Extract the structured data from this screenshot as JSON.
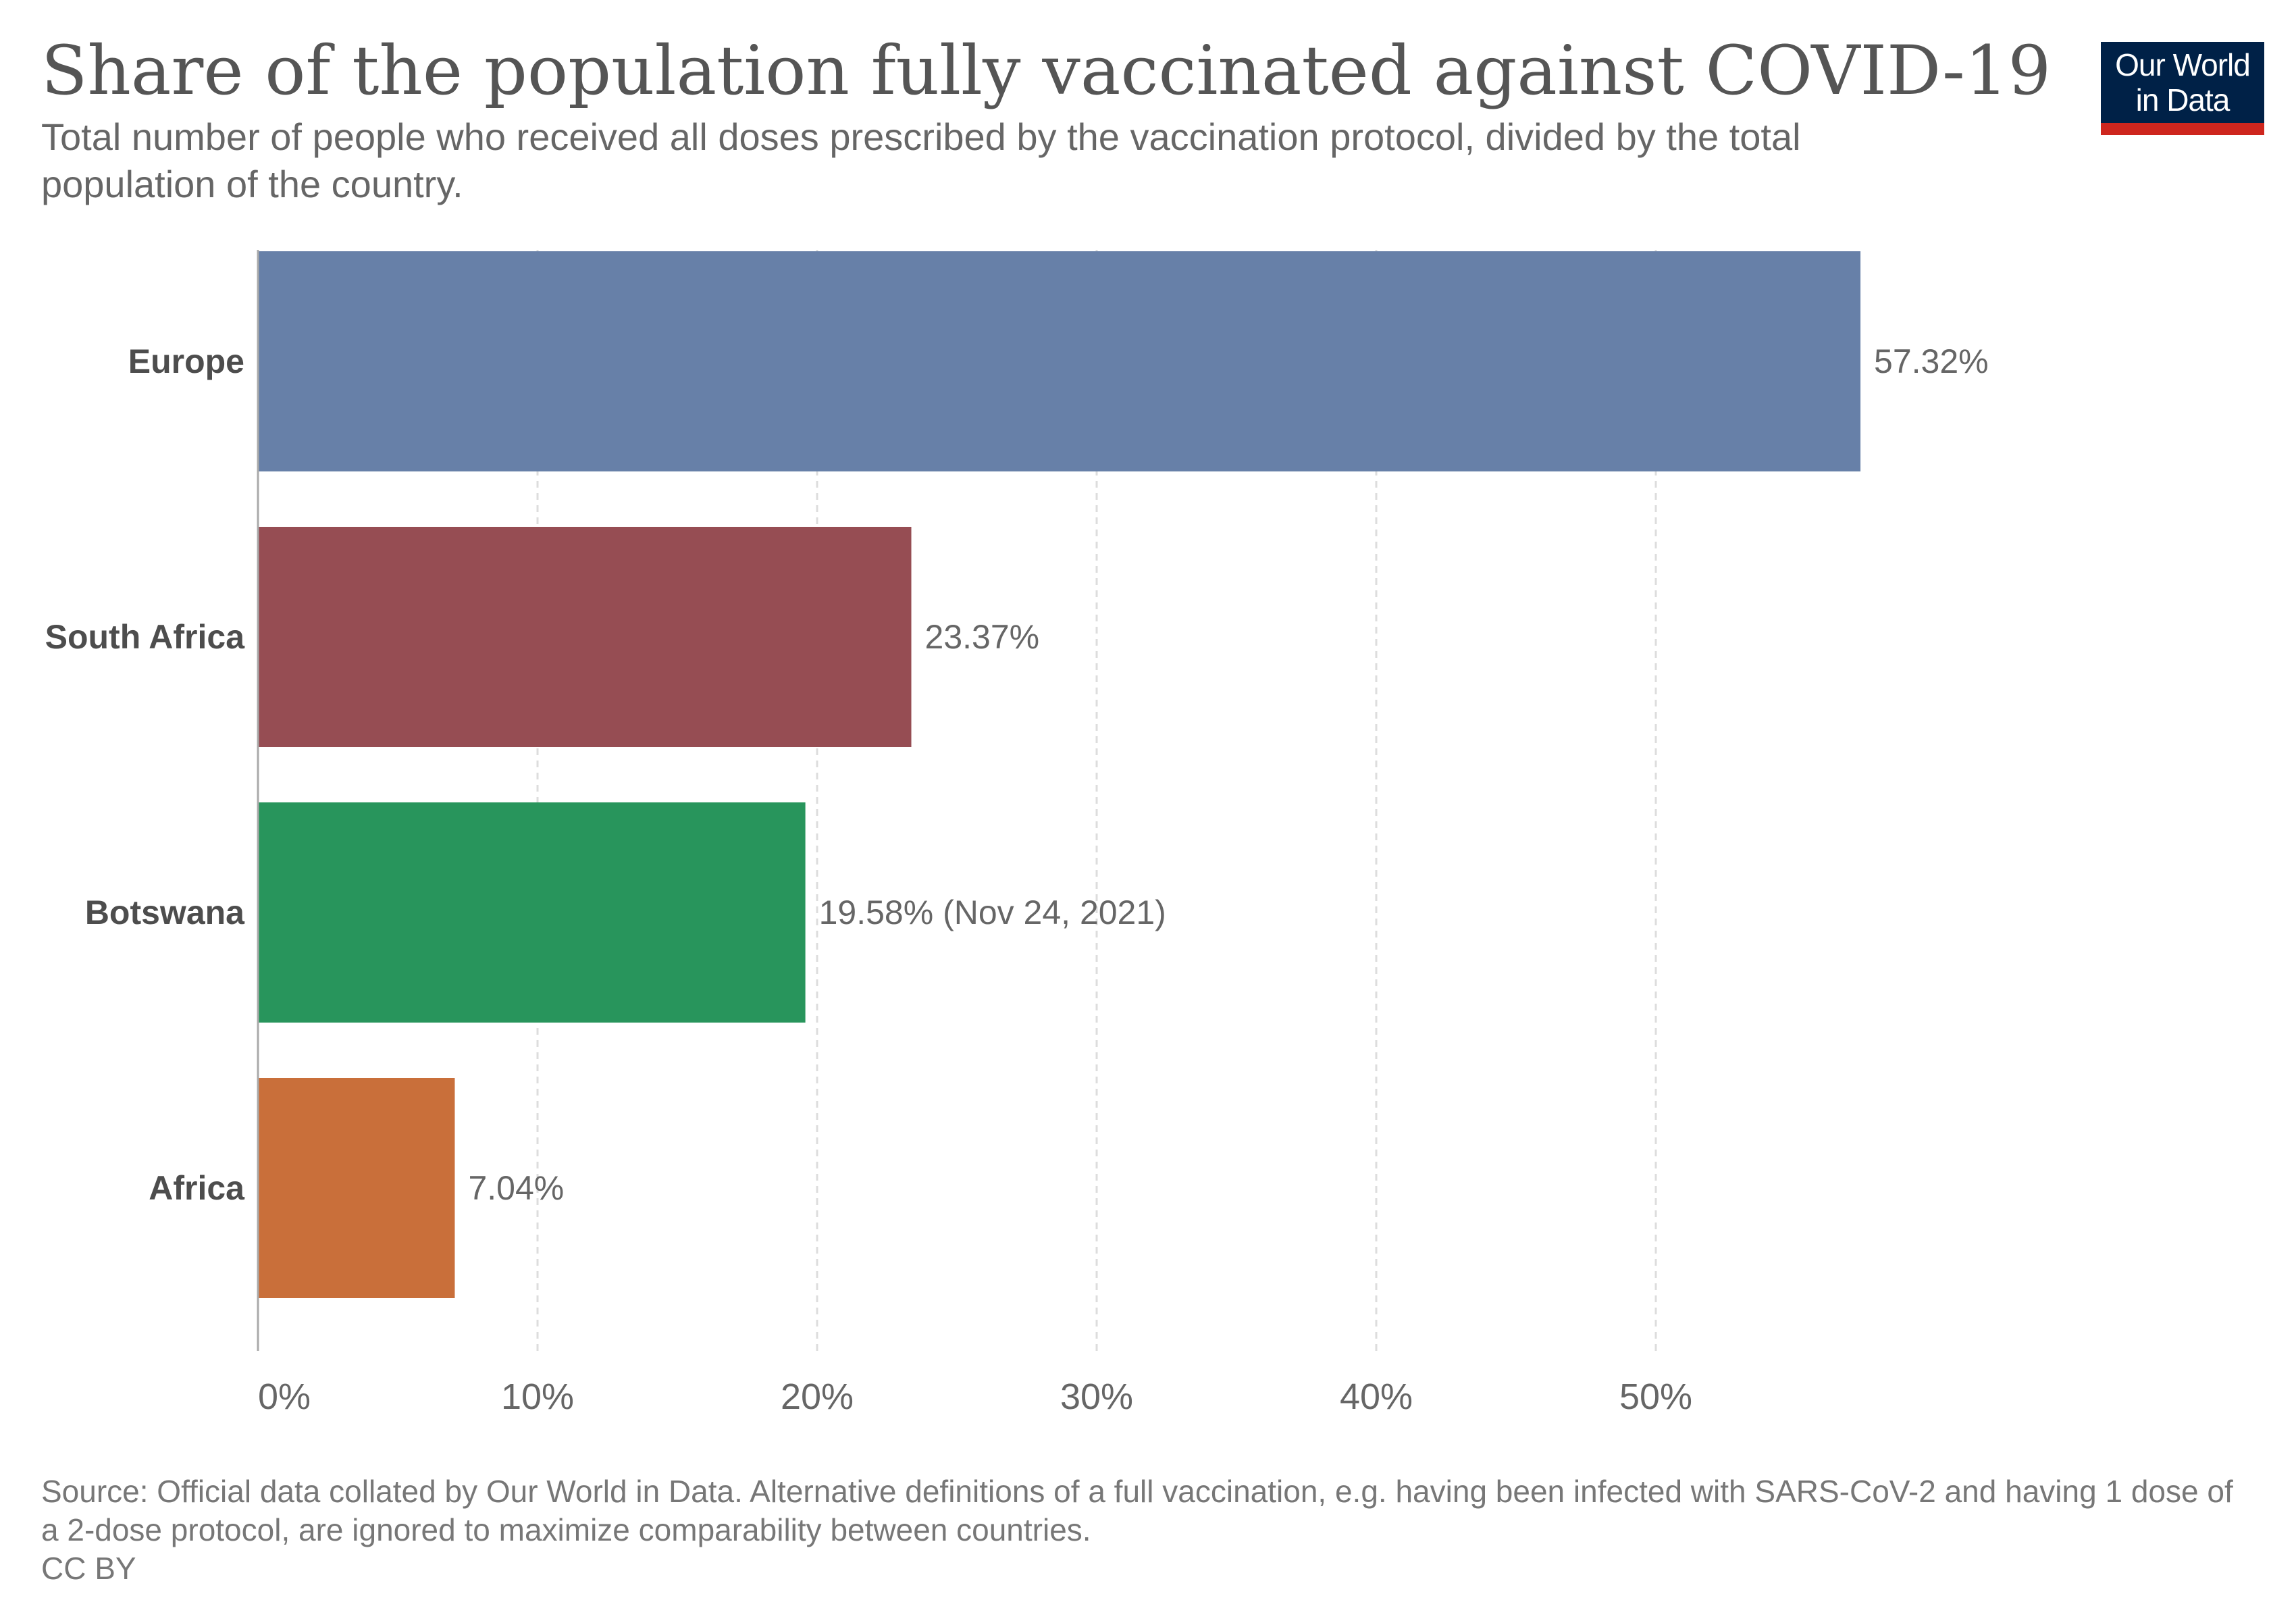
{
  "header": {
    "title": "Share of the population fully vaccinated against COVID-19",
    "subtitle": "Total number of people who received all doses prescribed by the vaccination protocol, divided by the total population of the country."
  },
  "logo": {
    "line1": "Our World",
    "line2": "in Data",
    "background_color": "#002147",
    "accent_color": "#ce261e"
  },
  "chart_data": {
    "type": "bar",
    "orientation": "horizontal",
    "title": "Share of the population fully vaccinated against COVID-19",
    "categories": [
      "Europe",
      "South Africa",
      "Botswana",
      "Africa"
    ],
    "values": [
      57.32,
      23.37,
      19.58,
      7.04
    ],
    "value_labels": [
      "57.32%",
      "23.37%",
      "19.58% (Nov 24, 2021)",
      "7.04%"
    ],
    "colors": [
      "#6780a8",
      "#964d53",
      "#28955c",
      "#c96f3a"
    ],
    "xlim": [
      0,
      60
    ],
    "xticks": [
      0,
      10,
      20,
      30,
      40,
      50
    ],
    "xtick_labels": [
      "0%",
      "10%",
      "20%",
      "30%",
      "40%",
      "50%"
    ],
    "grid": "vertical-dashed",
    "xlabel": "",
    "ylabel": ""
  },
  "footer": {
    "source": "Source: Official data collated by Our World in Data. Alternative definitions of a full vaccination, e.g. having been infected with SARS-CoV-2 and having 1 dose of a 2-dose protocol, are ignored to maximize comparability between countries.",
    "license": "CC BY"
  }
}
